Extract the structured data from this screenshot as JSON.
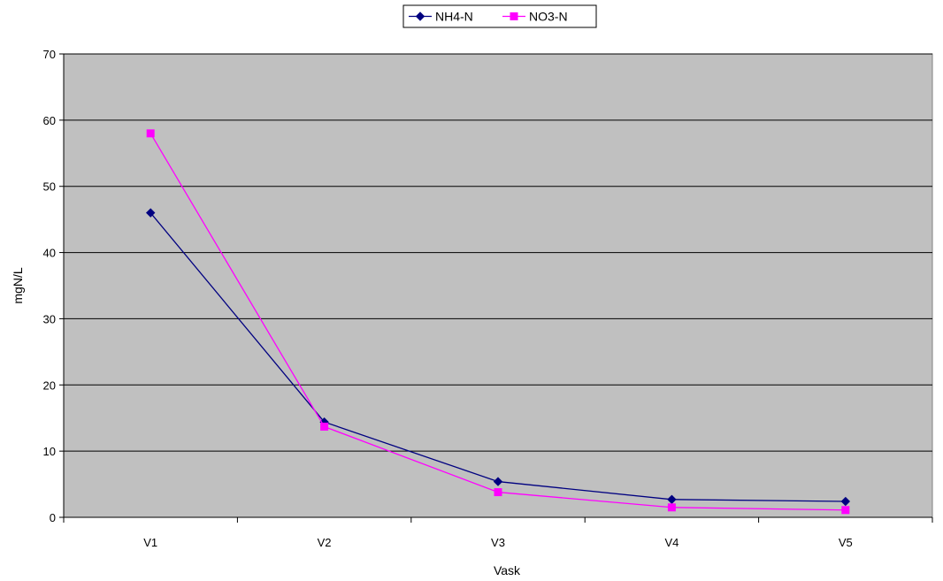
{
  "chart_data": {
    "type": "line",
    "categories": [
      "V1",
      "V2",
      "V3",
      "V4",
      "V5"
    ],
    "series": [
      {
        "name": "NH4-N",
        "values": [
          46.0,
          14.4,
          5.4,
          2.7,
          2.4
        ],
        "color": "#000080",
        "marker": "diamond"
      },
      {
        "name": "NO3-N",
        "values": [
          58.0,
          13.7,
          3.8,
          1.5,
          1.1
        ],
        "color": "#FF00FF",
        "marker": "square"
      }
    ],
    "title": "",
    "xlabel": "Vask",
    "ylabel": "mgN/L",
    "ylim": [
      0,
      70
    ],
    "yticks": [
      0,
      10,
      20,
      30,
      40,
      50,
      60,
      70
    ],
    "grid": true,
    "plot_background": "#C0C0C0",
    "legend_position": "top-center"
  }
}
